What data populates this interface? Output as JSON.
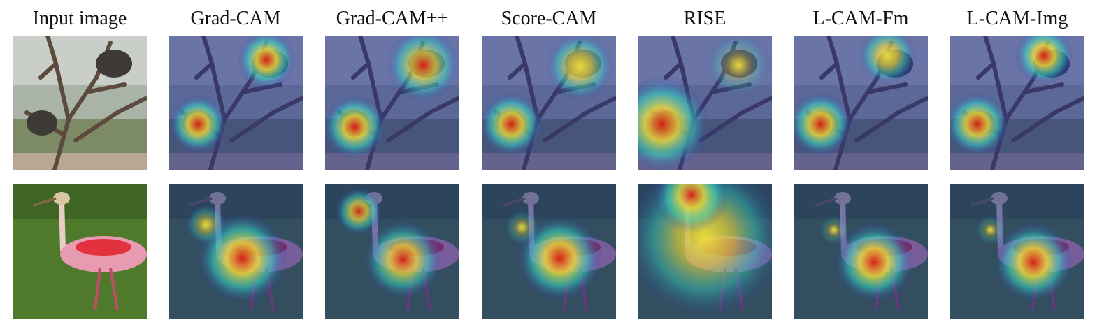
{
  "columns": [
    {
      "label": "Input image",
      "kind": "input"
    },
    {
      "label": "Grad-CAM",
      "kind": "heatmap"
    },
    {
      "label": "Grad-CAM++",
      "kind": "heatmap"
    },
    {
      "label": "Score-CAM",
      "kind": "heatmap"
    },
    {
      "label": "RISE",
      "kind": "heatmap"
    },
    {
      "label": "L-CAM-Fm",
      "kind": "heatmap"
    },
    {
      "label": "L-CAM-Img",
      "kind": "heatmap"
    }
  ],
  "rows": [
    {
      "scene": "porcupine"
    },
    {
      "scene": "spoonbill"
    }
  ],
  "colors": {
    "heat_low": "#2a2fb0",
    "heat_mid": "#33d9c8",
    "heat_high": "#f5e23a",
    "heat_peak": "#d81a12"
  }
}
